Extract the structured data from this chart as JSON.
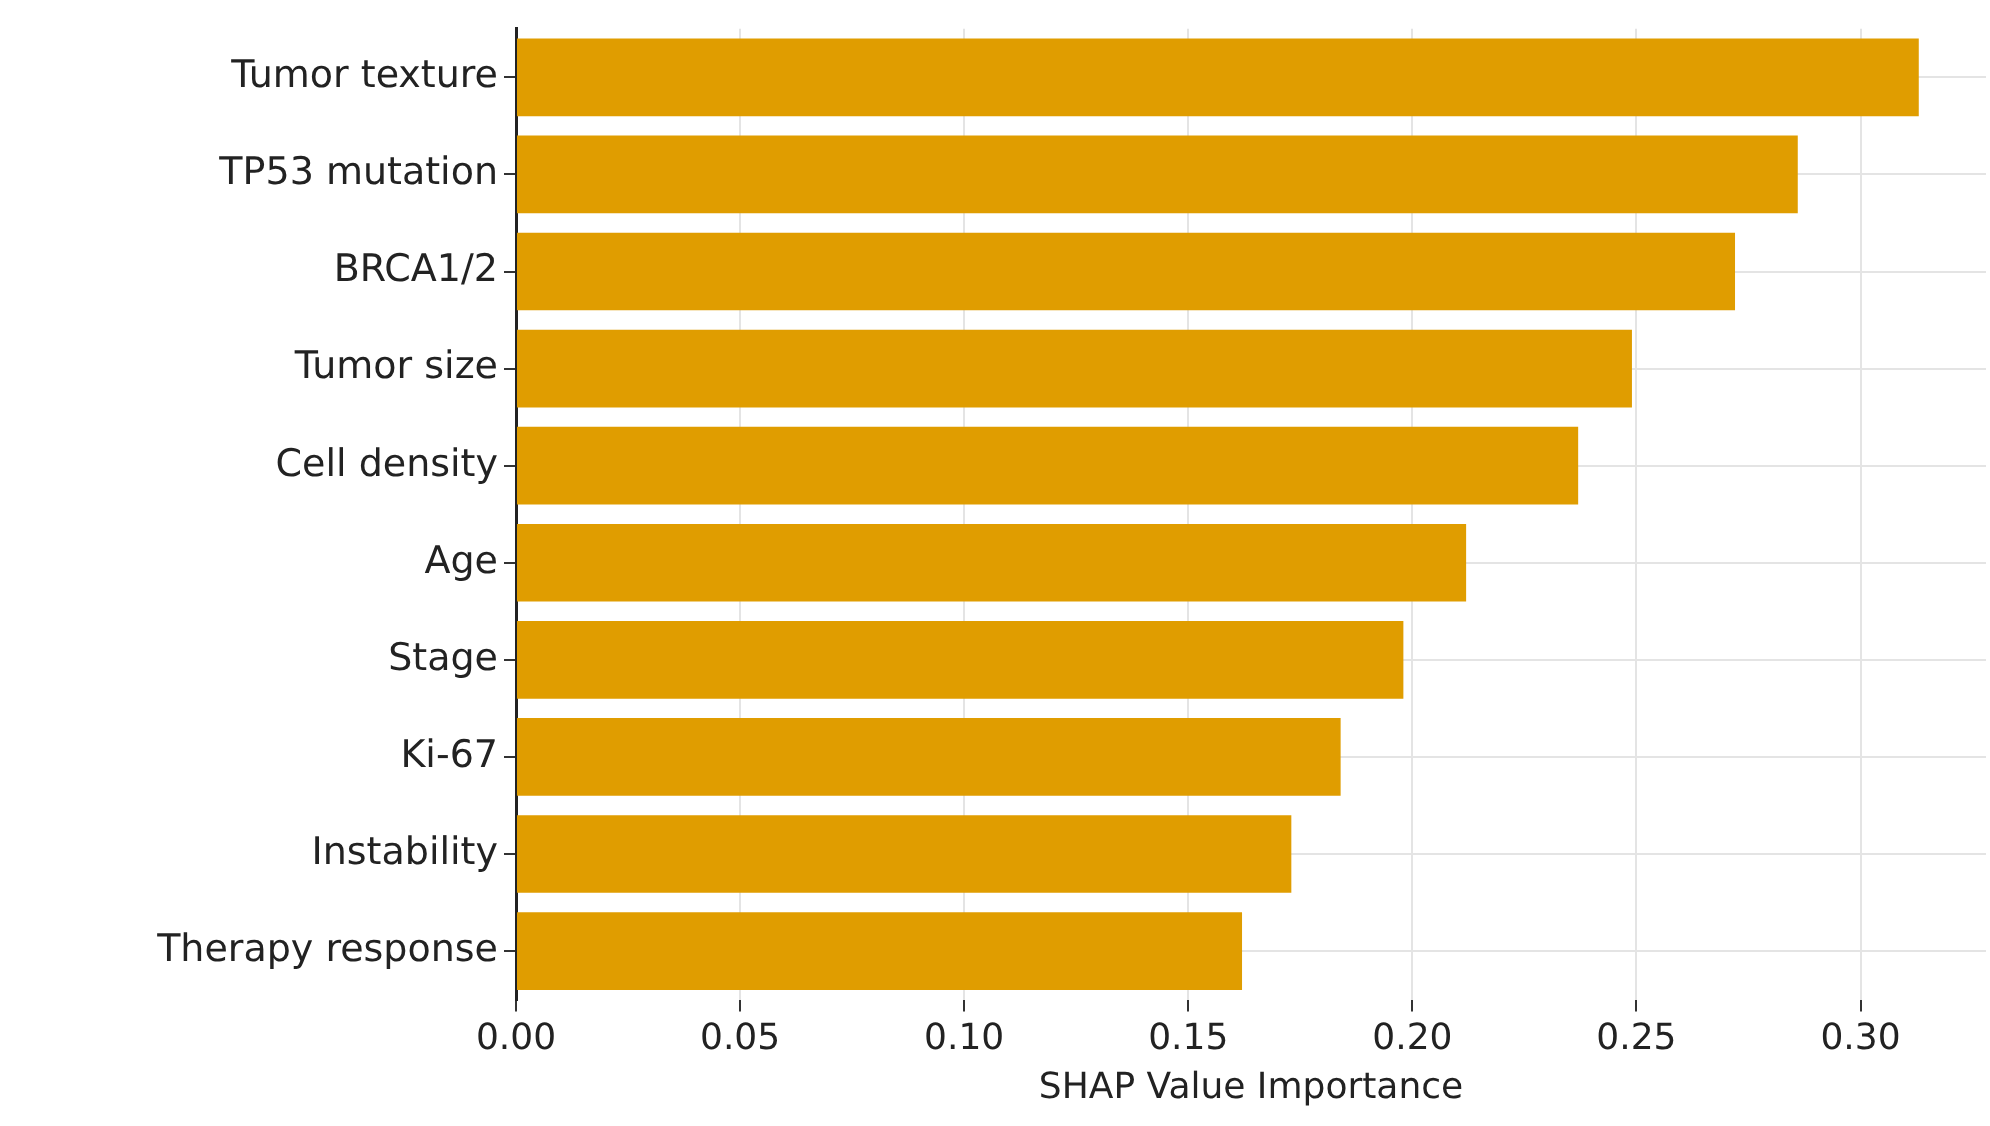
{
  "chart_data": {
    "type": "bar",
    "orientation": "horizontal",
    "xlabel": "SHAP Value Importance",
    "categories": [
      "Tumor texture",
      "TP53 mutation",
      "BRCA1/2",
      "Tumor size",
      "Cell density",
      "Age",
      "Stage",
      "Ki-67",
      "Instability",
      "Therapy response"
    ],
    "values": [
      0.313,
      0.286,
      0.272,
      0.249,
      0.237,
      0.212,
      0.198,
      0.184,
      0.173,
      0.162
    ],
    "color": "#e09d00",
    "xlim": [
      0,
      0.328
    ],
    "xticks": [
      {
        "value": 0,
        "label": "0.00"
      },
      {
        "value": 0.05,
        "label": "0.05"
      },
      {
        "value": 0.1,
        "label": "0.10"
      },
      {
        "value": 0.15,
        "label": "0.15"
      },
      {
        "value": 0.2,
        "label": "0.20"
      },
      {
        "value": 0.25,
        "label": "0.25"
      },
      {
        "value": 0.3,
        "label": "0.30"
      }
    ],
    "grid": true,
    "legend": false
  }
}
